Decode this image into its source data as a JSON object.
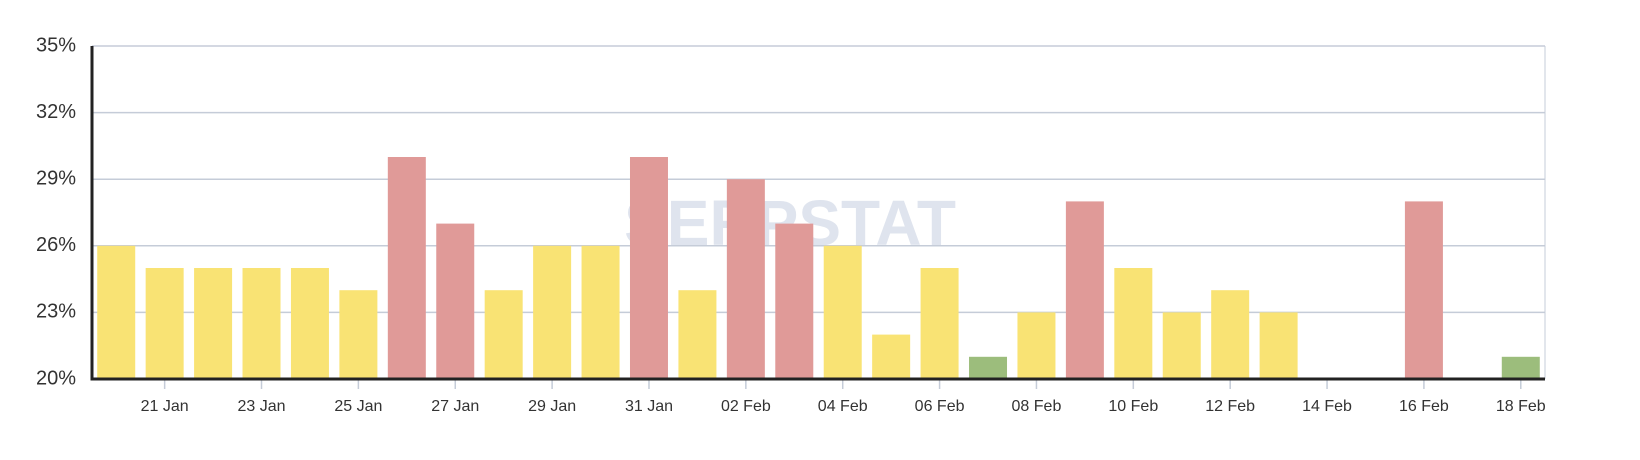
{
  "chart_data": {
    "type": "bar",
    "watermark": "SERPSTAT",
    "categories": [
      null,
      "21 Jan",
      null,
      "23 Jan",
      null,
      "25 Jan",
      null,
      "27 Jan",
      null,
      "29 Jan",
      null,
      "31 Jan",
      null,
      "02 Feb",
      null,
      "04 Feb",
      null,
      "06 Feb",
      null,
      "08 Feb",
      null,
      "10 Feb",
      null,
      "12 Feb",
      null,
      "14 Feb",
      null,
      "16 Feb",
      null,
      "18 Feb"
    ],
    "values": [
      26,
      25,
      25,
      25,
      25,
      24,
      30,
      27,
      24,
      26,
      26,
      30,
      24,
      29,
      27,
      26,
      22,
      25,
      21,
      23,
      28,
      25,
      23,
      24,
      23,
      null,
      null,
      28,
      null,
      21
    ],
    "colors": [
      "#f9e374",
      "#f9e374",
      "#f9e374",
      "#f9e374",
      "#f9e374",
      "#f9e374",
      "#e09a98",
      "#e09a98",
      "#f9e374",
      "#f9e374",
      "#f9e374",
      "#e09a98",
      "#f9e374",
      "#e09a98",
      "#e09a98",
      "#f9e374",
      "#f9e374",
      "#f9e374",
      "#9cbd7c",
      "#f9e374",
      "#e09a98",
      "#f9e374",
      "#f9e374",
      "#f9e374",
      "#f9e374",
      null,
      null,
      "#e09a98",
      null,
      "#9cbd7c"
    ],
    "ylim": [
      20,
      35
    ],
    "yticks": [
      {
        "value": 20,
        "label": "20%"
      },
      {
        "value": 23,
        "label": "23%"
      },
      {
        "value": 26,
        "label": "26%"
      },
      {
        "value": 29,
        "label": "29%"
      },
      {
        "value": 32,
        "label": "32%"
      },
      {
        "value": 35,
        "label": "35%"
      }
    ],
    "grid": true
  }
}
